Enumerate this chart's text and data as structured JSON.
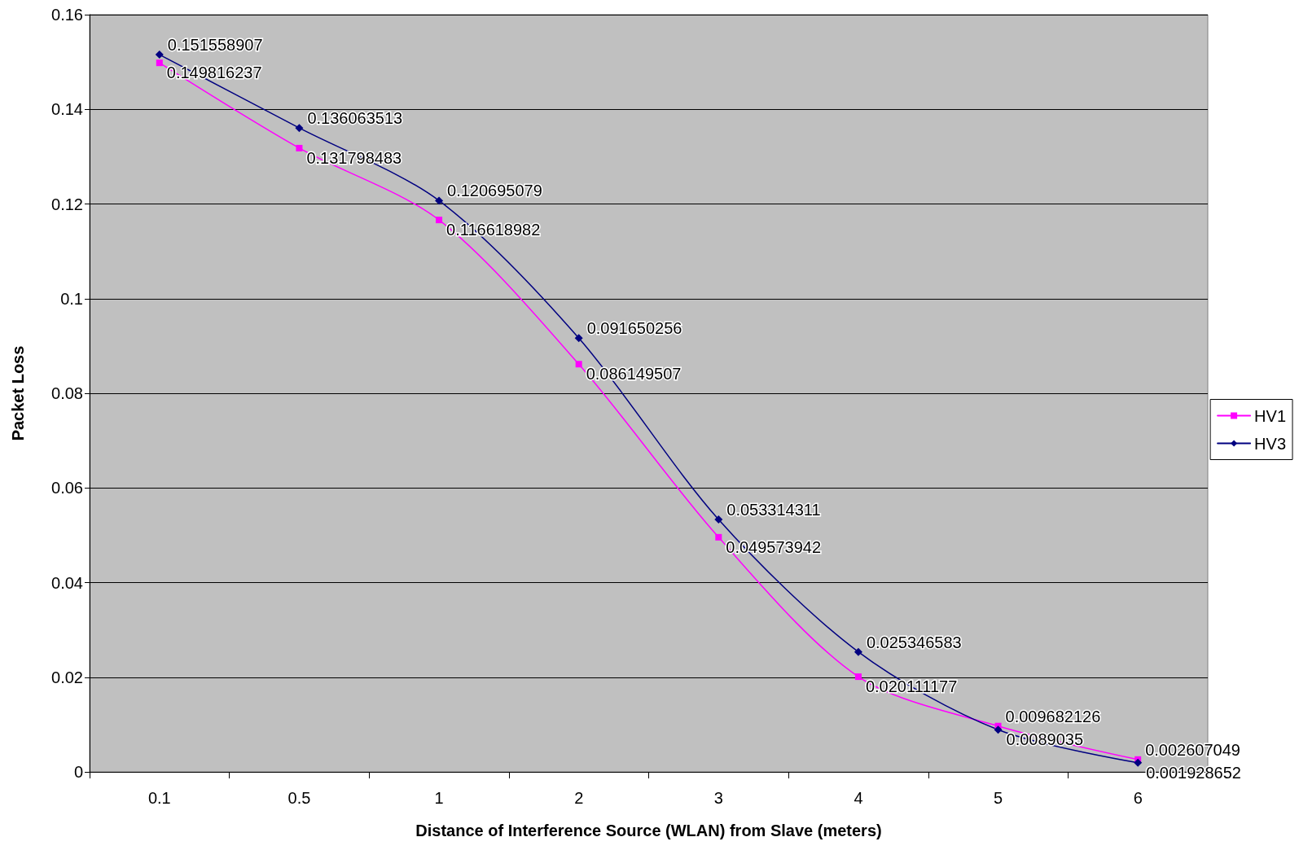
{
  "chart_data": {
    "type": "line",
    "xlabel": "Distance of Interference Source (WLAN) from Slave (meters)",
    "ylabel": "Packet Loss",
    "categories": [
      "0.1",
      "0.5",
      "1",
      "2",
      "3",
      "4",
      "5",
      "6"
    ],
    "series": [
      {
        "name": "HV1",
        "color": "#ff00ff",
        "marker": "square",
        "values": [
          0.149816237,
          0.131798483,
          0.116618982,
          0.086149507,
          0.049573942,
          0.020111177,
          0.009682126,
          0.002607049
        ]
      },
      {
        "name": "HV3",
        "color": "#000080",
        "marker": "diamond",
        "values": [
          0.151558907,
          0.136063513,
          0.120695079,
          0.091650256,
          0.053314311,
          0.025346583,
          0.0089035,
          0.001928652
        ]
      }
    ],
    "ylim": [
      0,
      0.16
    ],
    "yticks": [
      0,
      0.02,
      0.04,
      0.06,
      0.08,
      0.1,
      0.12,
      0.14,
      0.16
    ],
    "grid": "y",
    "legend": "right",
    "data_labels": true,
    "line_style": "solid"
  }
}
